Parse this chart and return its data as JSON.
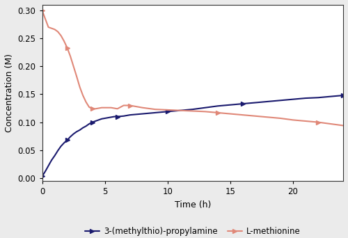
{
  "title": "",
  "xlabel": "Time (h)",
  "ylabel": "Concentration (M)",
  "xlim": [
    0,
    24
  ],
  "ylim": [
    -0.005,
    0.31
  ],
  "yticks": [
    0.0,
    0.05,
    0.1,
    0.15,
    0.2,
    0.25,
    0.3
  ],
  "xticks": [
    0,
    5,
    10,
    15,
    20
  ],
  "line1_color": "#1a1a6e",
  "line2_color": "#e08878",
  "line1_label": "3-(methylthio)-propylamine",
  "line2_label": "L-methionine",
  "line1_x": [
    0,
    0.25,
    0.5,
    0.75,
    1.0,
    1.25,
    1.5,
    1.75,
    2.0,
    2.25,
    2.5,
    2.75,
    3.0,
    3.25,
    3.5,
    3.75,
    4.0,
    4.25,
    4.5,
    4.75,
    5.0,
    5.25,
    5.5,
    5.75,
    6.0,
    6.5,
    7.0,
    7.5,
    8.0,
    8.5,
    9.0,
    9.5,
    10.0,
    10.5,
    11.0,
    11.5,
    12.0,
    13.0,
    14.0,
    15.0,
    16.0,
    17.0,
    18.0,
    19.0,
    20.0,
    21.0,
    22.0,
    23.0,
    24.0
  ],
  "line1_y": [
    0.003,
    0.012,
    0.022,
    0.032,
    0.04,
    0.049,
    0.057,
    0.063,
    0.068,
    0.074,
    0.079,
    0.083,
    0.086,
    0.09,
    0.093,
    0.097,
    0.1,
    0.102,
    0.104,
    0.106,
    0.107,
    0.108,
    0.109,
    0.11,
    0.11,
    0.111,
    0.113,
    0.114,
    0.115,
    0.116,
    0.117,
    0.118,
    0.119,
    0.12,
    0.121,
    0.122,
    0.123,
    0.126,
    0.129,
    0.131,
    0.133,
    0.135,
    0.137,
    0.139,
    0.141,
    0.143,
    0.144,
    0.146,
    0.148
  ],
  "line2_x": [
    0,
    0.25,
    0.5,
    0.75,
    1.0,
    1.25,
    1.5,
    1.75,
    2.0,
    2.25,
    2.5,
    2.75,
    3.0,
    3.25,
    3.5,
    3.75,
    4.0,
    4.25,
    4.5,
    4.75,
    5.0,
    5.5,
    6.0,
    6.5,
    7.0,
    7.5,
    8.0,
    9.0,
    10.0,
    11.0,
    12.0,
    13.0,
    14.0,
    15.0,
    16.0,
    17.0,
    18.0,
    19.0,
    20.0,
    21.0,
    22.0,
    23.0,
    24.0
  ],
  "line2_y": [
    0.3,
    0.285,
    0.27,
    0.268,
    0.266,
    0.262,
    0.255,
    0.245,
    0.233,
    0.218,
    0.2,
    0.182,
    0.163,
    0.148,
    0.136,
    0.127,
    0.124,
    0.124,
    0.125,
    0.126,
    0.126,
    0.126,
    0.124,
    0.13,
    0.13,
    0.128,
    0.126,
    0.123,
    0.122,
    0.121,
    0.12,
    0.119,
    0.117,
    0.115,
    0.113,
    0.111,
    0.109,
    0.107,
    0.104,
    0.102,
    0.1,
    0.097,
    0.094
  ],
  "legend_ncol": 2,
  "linewidth": 1.5,
  "marker": ">",
  "markersize": 4,
  "markevery": 8,
  "bg_color": "#ebebeb",
  "plot_bg_color": "#ffffff"
}
